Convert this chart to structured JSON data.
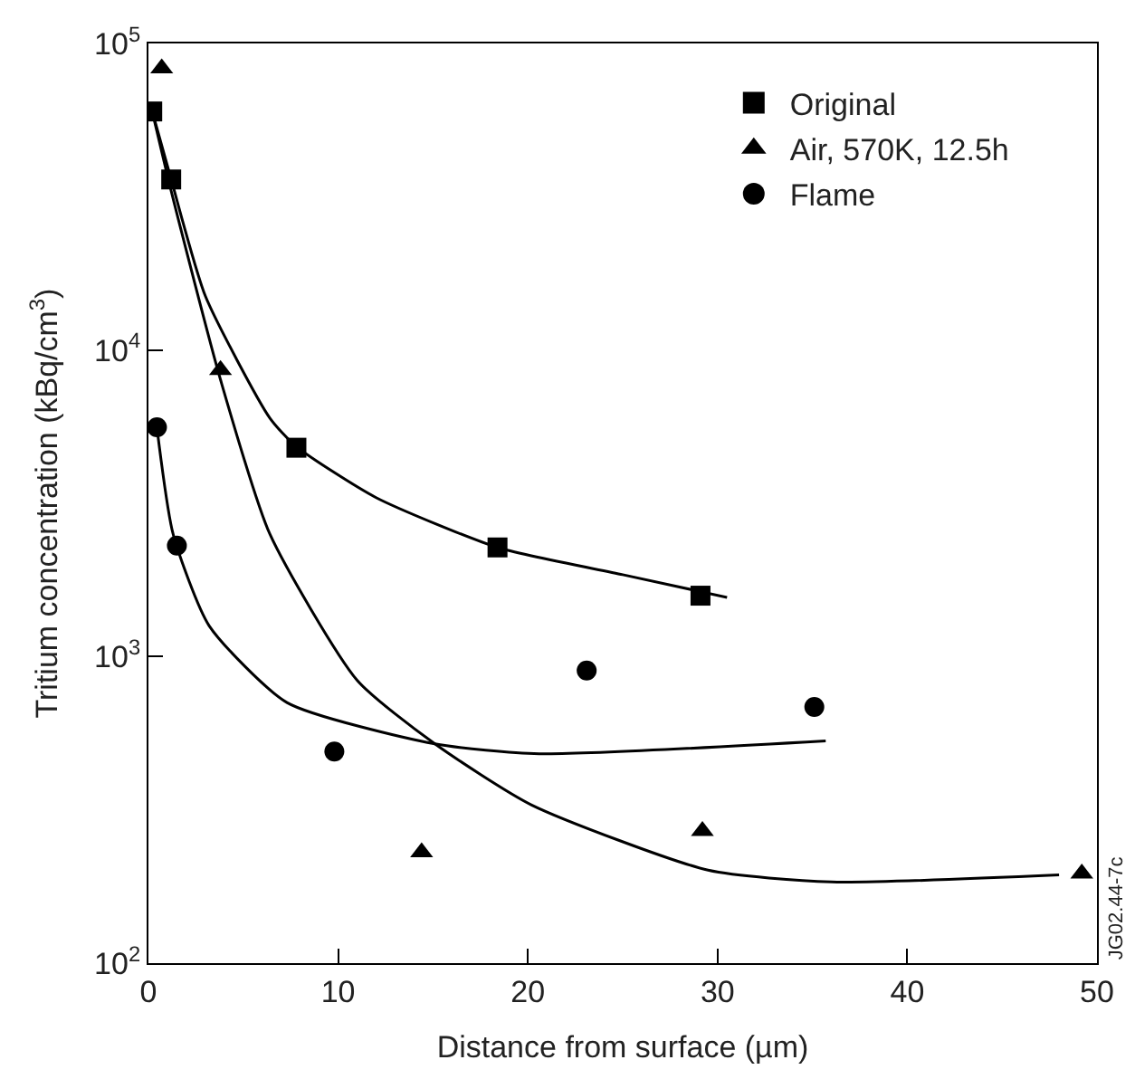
{
  "chart_data": {
    "type": "scatter",
    "xlabel": "Distance from surface (µm)",
    "ylabel": "Tritium concentration (kBq/cm$^{3}$)",
    "log": "y",
    "xlim": [
      0,
      50
    ],
    "ylim": [
      100,
      100000
    ],
    "xticks": [
      0,
      10,
      20,
      30,
      40,
      50
    ],
    "yticks": [
      {
        "value": 100,
        "label": "10$^{2}$"
      },
      {
        "value": 1000,
        "label": "10$^{3}$"
      },
      {
        "value": 10000,
        "label": "10$^{4}$"
      },
      {
        "value": 100000,
        "label": "10$^{5}$"
      }
    ],
    "legend": "top right",
    "series": [
      {
        "name": "Original",
        "color": "#000000",
        "marker": "square",
        "x": [
          0.2,
          1.2,
          7.8,
          18.4,
          29.1
        ],
        "values": [
          60000,
          36000,
          4800,
          2270,
          1580
        ]
      },
      {
        "name": "Air, 570K, 12.5h",
        "color": "#000000",
        "marker": "triangle",
        "x": [
          0.7,
          3.8,
          14.4,
          29.2,
          49.2
        ],
        "values": [
          83000,
          8600,
          230,
          270,
          196
        ]
      },
      {
        "name": "Flame",
        "color": "#000000",
        "marker": "circle",
        "x": [
          0.45,
          1.5,
          9.8,
          23.1,
          35.1
        ],
        "values": [
          5600,
          2300,
          490,
          900,
          685
        ]
      },
      {
        "type": "line",
        "color": "#000000",
        "marker": "none",
        "x": [
          0.2,
          1.2,
          3,
          6.4,
          7.8,
          12,
          18.4,
          25,
          30.5
        ],
        "values": [
          60000,
          36000,
          15000,
          6000,
          4840,
          3300,
          2270,
          1850,
          1560
        ]
      },
      {
        "type": "line",
        "color": "#000000",
        "marker": "none",
        "x": [
          0.2,
          1.2,
          3.8,
          6.4,
          11,
          15.1,
          20.2,
          29.5,
          36,
          48
        ],
        "values": [
          60000,
          33000,
          8000,
          2510,
          837,
          519,
          328,
          201,
          184,
          194
        ]
      },
      {
        "type": "line",
        "color": "#000000",
        "marker": "none",
        "x": [
          0.45,
          1.3,
          3.2,
          7.3,
          15.1,
          20.6,
          35.7
        ],
        "values": [
          5560,
          2510,
          1260,
          708,
          519,
          482,
          531
        ]
      }
    ],
    "annotations": [
      "JG02.44-7c"
    ]
  }
}
